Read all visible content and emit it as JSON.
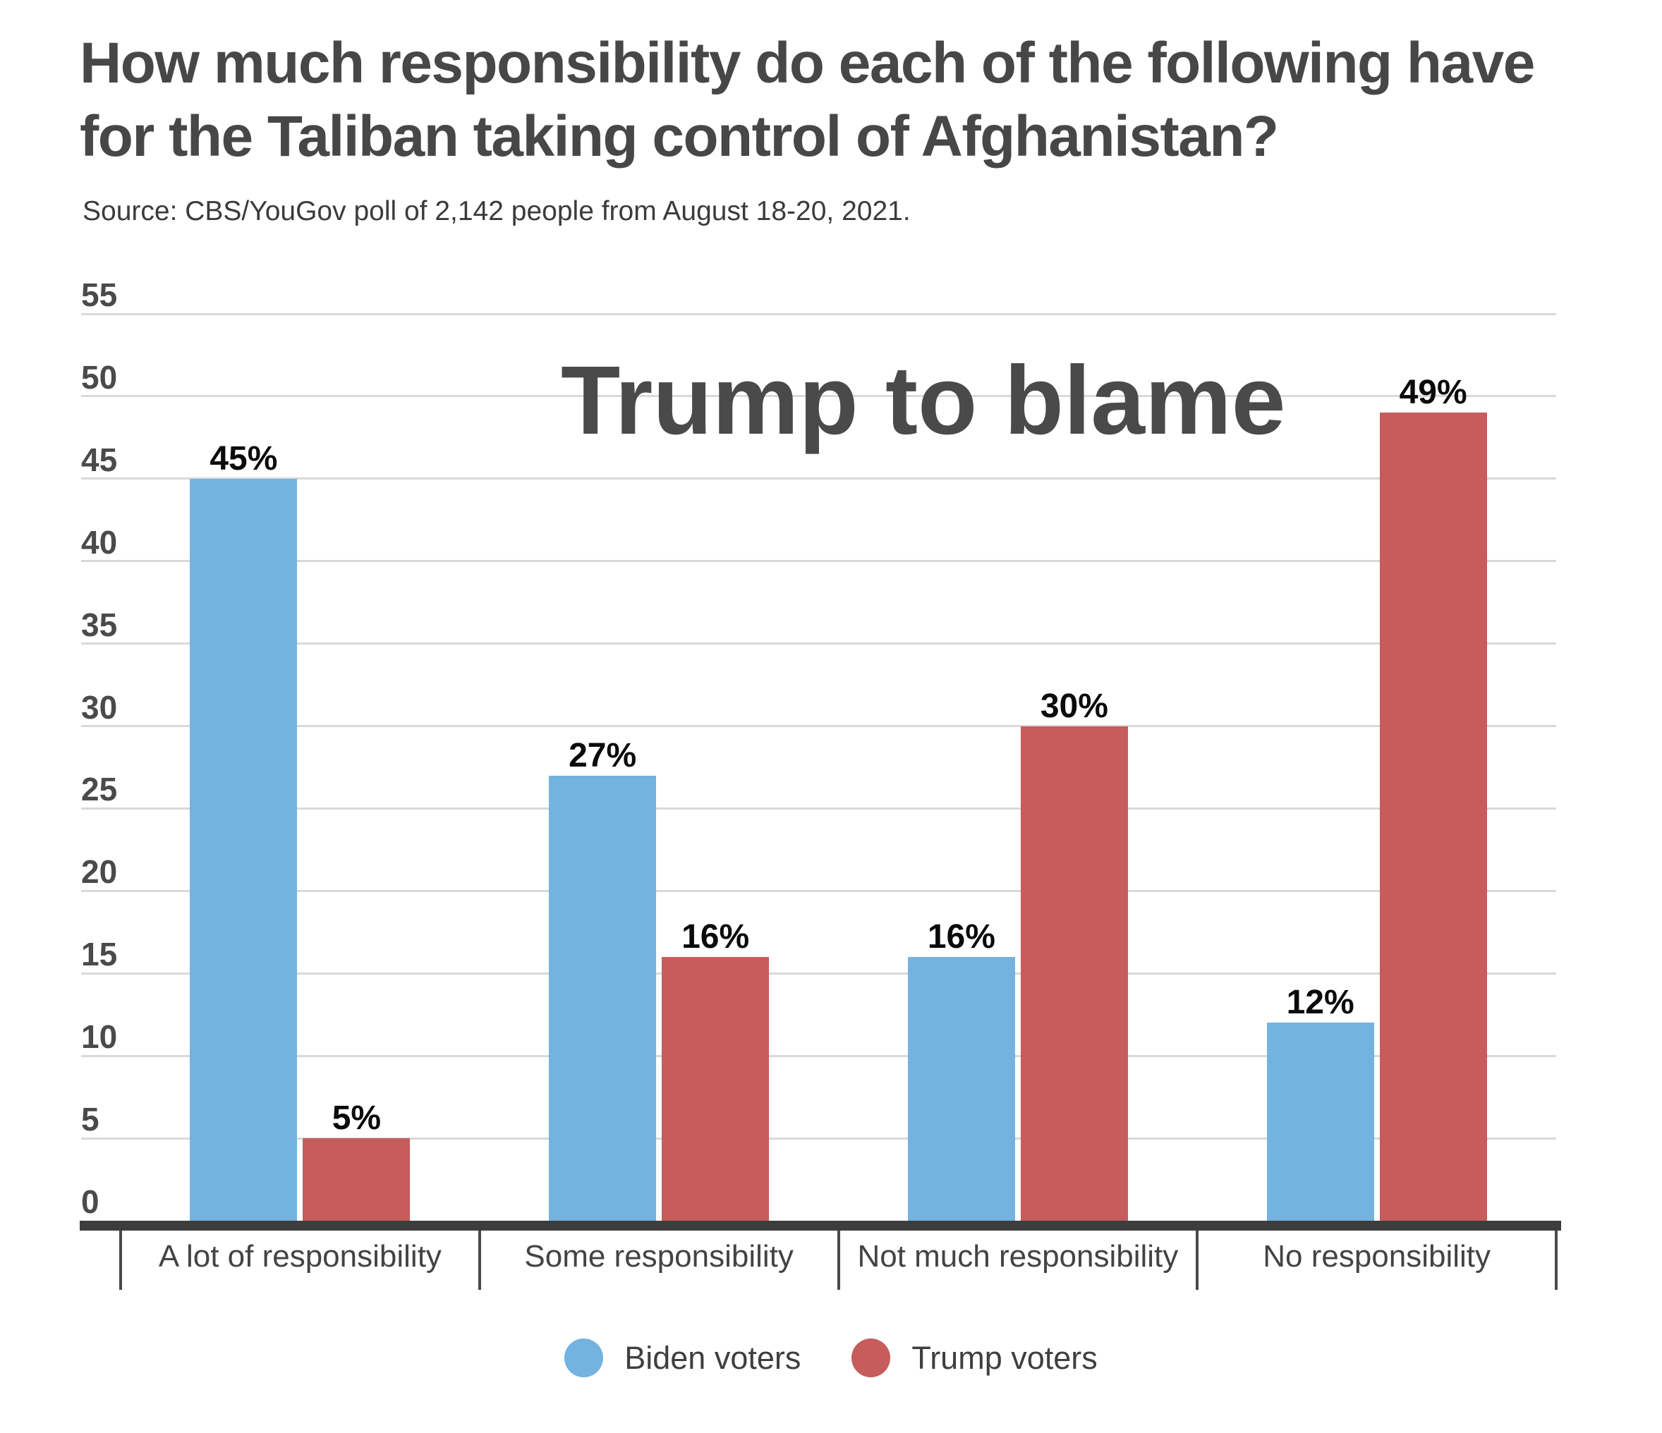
{
  "header": {
    "title": "How much responsibility do each of the following have\nfor the Taliban taking control of Afghanistan?",
    "source": "Source: CBS/YouGov poll of 2,142 people from August 18-20, 2021."
  },
  "chart_data": {
    "type": "bar",
    "title": "Trump to blame",
    "categories": [
      "A lot of responsibility",
      "Some responsibility",
      "Not much responsibility",
      "No responsibility"
    ],
    "series": [
      {
        "name": "Biden voters",
        "color": "#74b2e0",
        "values": [
          45,
          27,
          16,
          12
        ]
      },
      {
        "name": "Trump voters",
        "color": "#c65c5c",
        "values": [
          5,
          16,
          30,
          49
        ]
      }
    ],
    "value_suffix": "%",
    "value_labels": [
      "45%",
      "5%",
      "27%",
      "16%",
      "16%",
      "30%",
      "12%",
      "49%"
    ],
    "ylim": [
      0,
      55
    ],
    "yticks": [
      0,
      5,
      10,
      15,
      20,
      25,
      30,
      35,
      40,
      45,
      50,
      55
    ],
    "grid": true,
    "legend_position": "bottom"
  }
}
